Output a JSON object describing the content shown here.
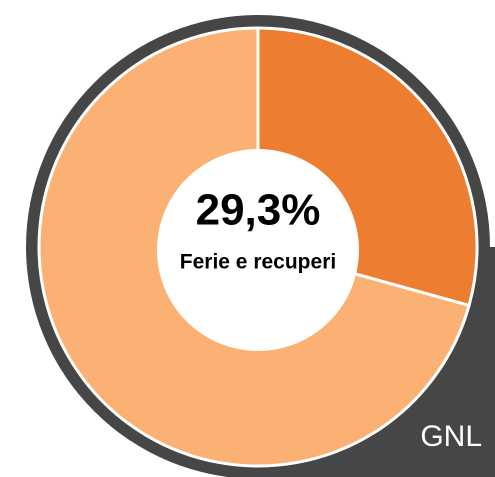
{
  "chart_data": {
    "type": "donut",
    "categories": [
      "Ferie e recuperi",
      null
    ],
    "values": [
      29.3,
      70.7
    ],
    "value_labels": [
      "29,3%",
      null
    ],
    "colors": [
      "#ed7d31",
      "#fbb174"
    ],
    "corner_label": "GNL"
  }
}
